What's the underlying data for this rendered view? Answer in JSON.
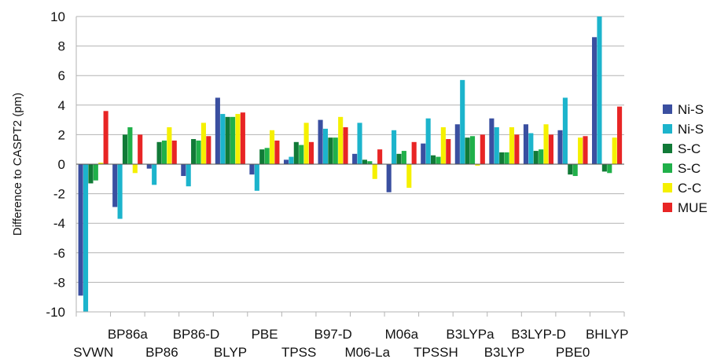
{
  "chart_data": {
    "type": "bar",
    "title": "",
    "xlabel": "",
    "ylabel": "Difference to CASPT2 (pm)",
    "ylim": [
      -10,
      10
    ],
    "yticks": [
      -10,
      -8,
      -6,
      -4,
      -2,
      0,
      2,
      4,
      6,
      8,
      10
    ],
    "grid": true,
    "legend_position": "right",
    "categories": [
      "SVWN",
      "BP86a",
      "BP86",
      "BP86-D",
      "BLYP",
      "PBE",
      "TPSS",
      "B97-D",
      "M06-La",
      "M06a",
      "TPSSH",
      "B3LYPa",
      "B3LYP",
      "B3LYP-D",
      "PBE0",
      "BHLYP"
    ],
    "series": [
      {
        "name": "Ni-S",
        "color": "#3a4fa0",
        "values": [
          -8.9,
          -2.9,
          -0.3,
          -0.8,
          4.5,
          -0.7,
          0.3,
          3.0,
          0.7,
          -1.9,
          1.4,
          2.7,
          3.1,
          2.7,
          2.3,
          8.6
        ]
      },
      {
        "name": "Ni-S",
        "color": "#1cb4cc",
        "values": [
          -10.0,
          -3.7,
          -1.4,
          -1.5,
          3.4,
          -1.8,
          0.5,
          2.4,
          2.8,
          2.3,
          3.1,
          5.7,
          2.5,
          2.1,
          4.5,
          10.0
        ]
      },
      {
        "name": "S-C",
        "color": "#117a37",
        "values": [
          -1.3,
          2.0,
          1.5,
          1.7,
          3.2,
          1.0,
          1.5,
          1.8,
          0.3,
          0.7,
          0.6,
          1.8,
          0.8,
          0.9,
          -0.7,
          -0.5
        ]
      },
      {
        "name": "S-C",
        "color": "#20b04a",
        "values": [
          -1.1,
          2.5,
          1.6,
          1.6,
          3.2,
          1.1,
          1.3,
          1.8,
          0.2,
          0.9,
          0.5,
          1.9,
          0.8,
          1.0,
          -0.8,
          -0.6
        ]
      },
      {
        "name": "C-C",
        "color": "#f5f000",
        "values": [
          0.1,
          -0.6,
          2.5,
          2.8,
          3.4,
          2.3,
          2.8,
          3.2,
          -1.0,
          -1.6,
          2.5,
          -0.1,
          2.5,
          2.7,
          1.8,
          1.8
        ]
      },
      {
        "name": "MUE",
        "color": "#e82525",
        "values": [
          3.6,
          2.0,
          1.6,
          1.9,
          3.5,
          1.6,
          1.5,
          2.5,
          1.0,
          1.5,
          1.7,
          2.0,
          2.0,
          2.0,
          1.9,
          3.9
        ]
      }
    ]
  }
}
